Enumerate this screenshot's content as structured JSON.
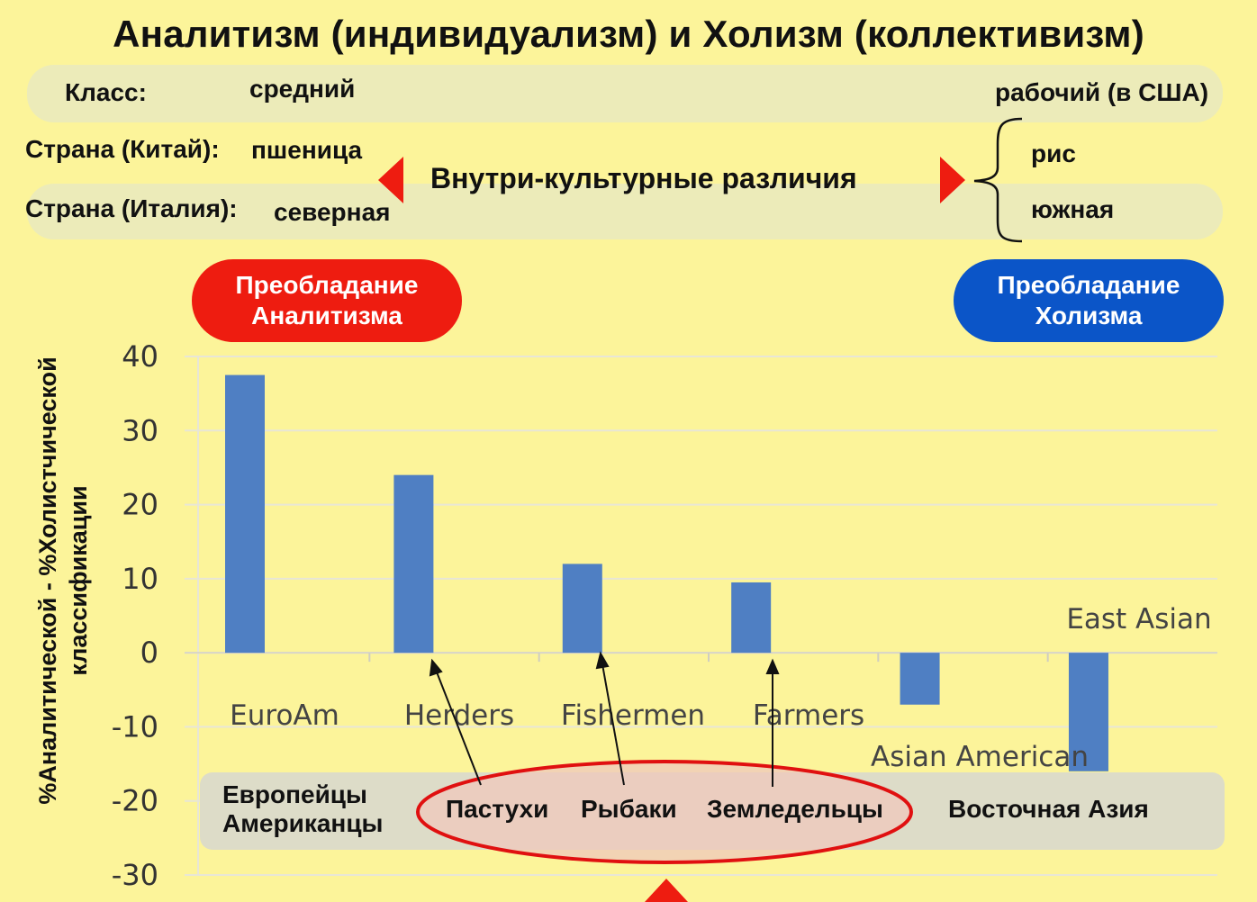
{
  "title": "Аналитизм (индивидуализм) и Холизм (коллективизм)",
  "class_row": {
    "label": "Класс:",
    "left": "средний",
    "right": "рабочий (в США)"
  },
  "china_row": {
    "label": "Страна (Китай):",
    "left": "пшеница",
    "right": "рис"
  },
  "italy_row": {
    "label": "Страна (Италия):",
    "left": "северная",
    "right": "южная"
  },
  "center_label": "Внутри-культурные различия",
  "pill_analytic": {
    "line1": "Преобладание",
    "line2": "Аналитизма",
    "color": "#ee1c10"
  },
  "pill_holistic": {
    "line1": "Преобладание",
    "line2": "Холизма",
    "color": "#0b55c8"
  },
  "y_axis_label": "%Аналитической - %Холистчической классификации",
  "groups": {
    "euro_line1": "Европейцы",
    "euro_line2": "Американцы",
    "herders": "Пастухи",
    "fishers": "Рыбаки",
    "farmers": "Земледельцы",
    "east_asia": "Восточная Азия"
  },
  "colors": {
    "background": "#fcf49a",
    "bar": "#4f7fc3",
    "highlight_ellipse": "#e01010",
    "arrow": "#e01010"
  },
  "chart_data": {
    "type": "bar",
    "categories": [
      "EuroAm",
      "Herders",
      "Fishermen",
      "Farmers",
      "Asian American",
      "East Asian"
    ],
    "values": [
      37.5,
      24,
      12,
      9.5,
      -7,
      -16
    ],
    "ylim": [
      -30,
      40
    ],
    "yticks": [
      40,
      30,
      20,
      10,
      0,
      -10,
      -20,
      -30
    ],
    "grid": true
  }
}
